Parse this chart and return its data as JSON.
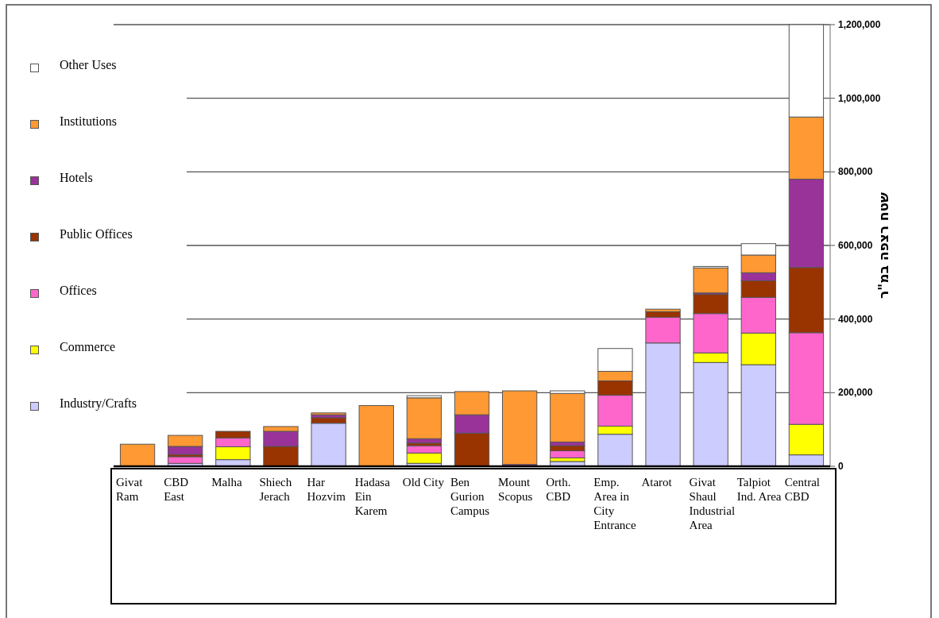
{
  "chart_data": {
    "type": "bar",
    "stacked": true,
    "ylabel": "שטח רצפה במ\"ר",
    "categories": [
      "Givat Ram",
      "CBD East",
      "Malha",
      "Shiech Jerach",
      "Har Hozvim",
      "Hadasa Ein Karem",
      "Old City",
      "Ben Gurion Campus",
      "Mount Scopus",
      "Orth. CBD",
      "Emp. Area in City Entrance",
      "Atarot",
      "Givat Shaul Industrial Area",
      "Talpiot Ind. Area",
      "Central CBD"
    ],
    "series": [
      {
        "name": "Industry/Crafts",
        "color": "#ccccff",
        "values": [
          0,
          8000,
          18000,
          0,
          117000,
          0,
          8000,
          0,
          0,
          13000,
          87000,
          335000,
          282000,
          276000,
          31000
        ]
      },
      {
        "name": "Commerce",
        "color": "#ffff00",
        "values": [
          0,
          0,
          35000,
          0,
          0,
          0,
          28000,
          0,
          0,
          10000,
          22000,
          0,
          26000,
          86000,
          83000
        ]
      },
      {
        "name": "Offices",
        "color": "#ff66cc",
        "values": [
          0,
          18000,
          24000,
          0,
          0,
          0,
          20000,
          0,
          0,
          19000,
          84000,
          70000,
          107000,
          97000,
          249000
        ]
      },
      {
        "name": "Public Offices",
        "color": "#993300",
        "values": [
          0,
          6000,
          18000,
          54000,
          15000,
          0,
          7000,
          90000,
          0,
          14000,
          39000,
          15000,
          52000,
          45000,
          177000
        ]
      },
      {
        "name": "Hotels",
        "color": "#993399",
        "values": [
          0,
          22000,
          0,
          41000,
          8000,
          0,
          12000,
          50000,
          5000,
          10000,
          0,
          0,
          4000,
          22000,
          240000
        ]
      },
      {
        "name": "Institutions",
        "color": "#ff9933",
        "values": [
          60000,
          30000,
          0,
          13000,
          5000,
          165000,
          111000,
          63000,
          200000,
          132000,
          26000,
          7000,
          68000,
          48000,
          169000
        ]
      },
      {
        "name": "Other Uses",
        "color": "#ffffff",
        "values": [
          0,
          0,
          0,
          0,
          0,
          0,
          6000,
          0,
          0,
          7000,
          62000,
          0,
          4000,
          31000,
          251000
        ]
      }
    ],
    "ylim": [
      0,
      1200000
    ],
    "yticks": [
      0,
      {
        "value": 200000,
        "label": "200,000"
      },
      {
        "value": 400000,
        "label": "400,000"
      },
      {
        "value": 600000,
        "label": "600,000"
      },
      {
        "value": 800000,
        "label": "800,000"
      },
      {
        "value": 1000000,
        "label": "1,000,000"
      },
      {
        "value": 1200000,
        "label": "1,200,000"
      }
    ],
    "grid": "y",
    "legend": "top left"
  }
}
